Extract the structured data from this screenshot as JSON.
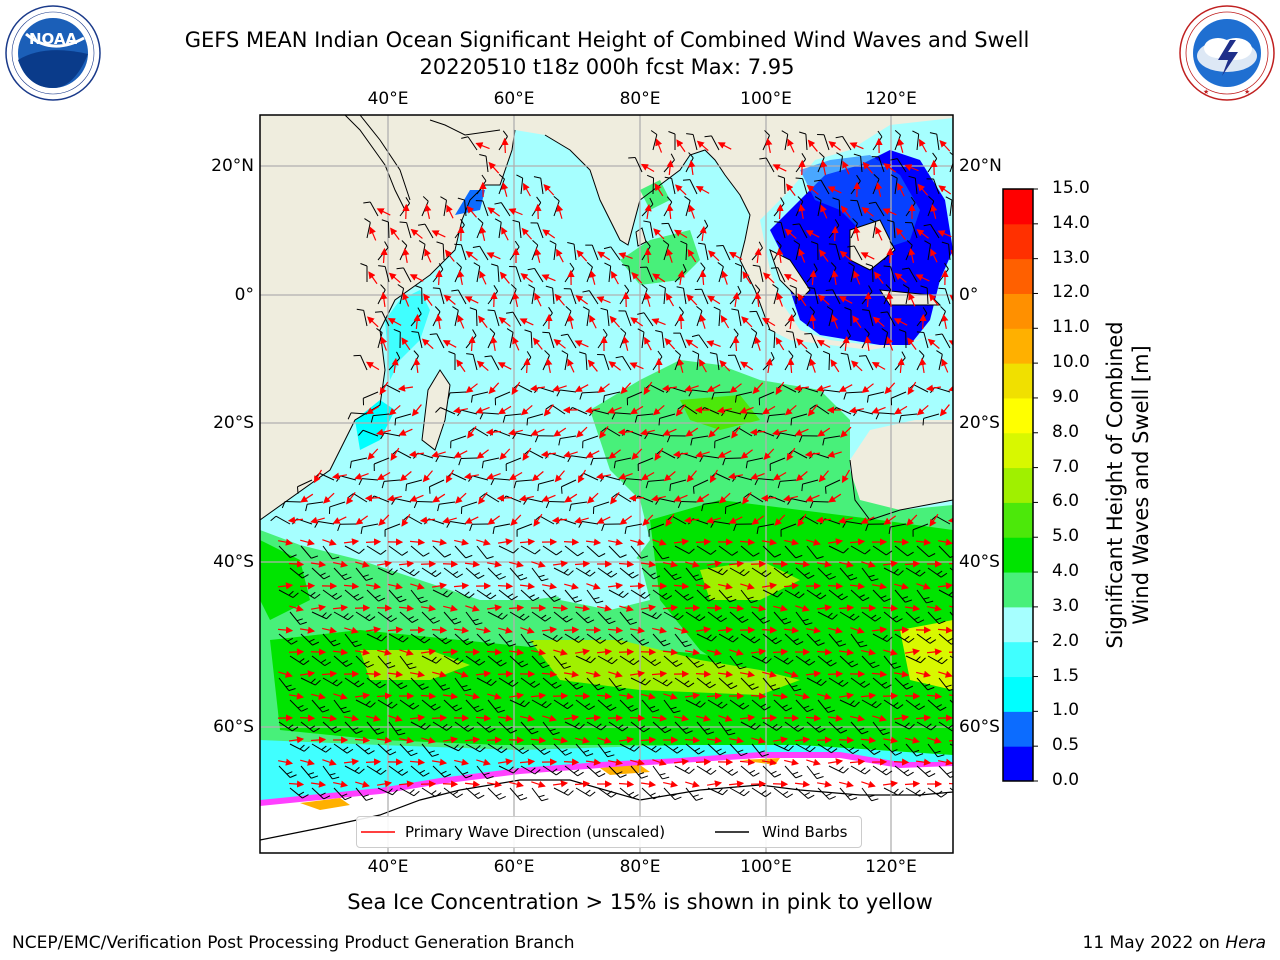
{
  "header": {
    "title_line1": "GEFS MEAN Indian Ocean Significant Height of Combined Wind Waves and Swell",
    "title_line2": "20220510 t18z 000h fcst   Max: 7.95"
  },
  "logos": {
    "left": {
      "name": "noaa-logo",
      "text": "NOAA",
      "ring_text": "NATIONAL OCEANIC AND ATMOSPHERIC ADMINISTRATION · U.S. DEPARTMENT OF COMMERCE"
    },
    "right": {
      "name": "nws-logo",
      "ring_text": "NATIONAL WEATHER SERVICE"
    }
  },
  "map": {
    "lon_labels": [
      "40°E",
      "60°E",
      "80°E",
      "100°E",
      "120°E"
    ],
    "lat_labels": [
      "20°N",
      "0°",
      "20°S",
      "40°S",
      "60°S"
    ],
    "land_color": "#efedde",
    "grid_color": "#b0b0b0"
  },
  "colorbar": {
    "label_line1": "Significant Height of Combined",
    "label_line2": "Wind Waves and Swell [m]",
    "ticks": [
      "0.0",
      "0.5",
      "1.0",
      "1.5",
      "2.0",
      "3.0",
      "4.0",
      "5.0",
      "6.0",
      "7.0",
      "8.0",
      "9.0",
      "10.0",
      "11.0",
      "12.0",
      "13.0",
      "14.0",
      "15.0"
    ],
    "colors": [
      "#0000ff",
      "#0c6cff",
      "#00ffff",
      "#40ffff",
      "#a6ffff",
      "#48f07a",
      "#00e400",
      "#4ce80a",
      "#a0f000",
      "#d8f800",
      "#ffff00",
      "#f0e000",
      "#ffb000",
      "#ff9000",
      "#ff6000",
      "#ff3000",
      "#ff0000"
    ]
  },
  "legend": {
    "wave_label": "Primary Wave Direction (unscaled)",
    "wind_label": "Wind Barbs",
    "wave_color": "#ff0000",
    "wind_color": "#000000"
  },
  "footer": {
    "note": "Sea Ice Concentration > 15% is shown in pink to yellow",
    "left": "NCEP/EMC/Verification Post Processing Product Generation Branch",
    "right_date": "11 May 2022 on ",
    "right_host": "Hera"
  }
}
